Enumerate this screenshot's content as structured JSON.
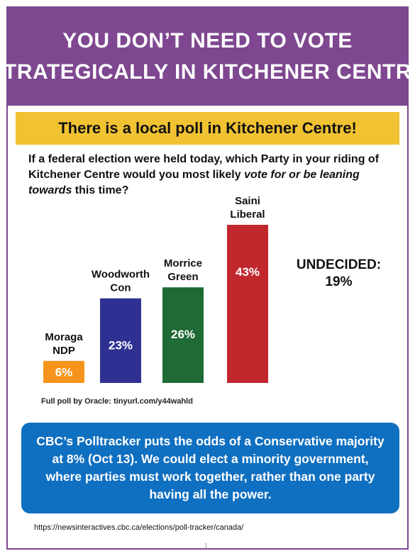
{
  "header": {
    "line1": "YOU DON’T NEED TO VOTE",
    "line2": "STRATEGICALLY IN KITCHENER CENTRE"
  },
  "subtitle": "There is a local poll in Kitchener Centre!",
  "question": {
    "part1": "If a federal election were held today, which Party in your riding of Kitchener Centre would you most likely ",
    "emphasis": "vote for or be leaning towards",
    "part2": " this time?"
  },
  "undecided": {
    "label": "UNDECIDED:",
    "value": "19%"
  },
  "source_note": "Full poll by Oracle: tinyurl.com/y44wahld",
  "callout": "CBC’s Polltracker puts the odds of a Conservative majority at 8% (Oct 13). We could elect a minority government, where parties must work together, rather than one party having all the power.",
  "url_note": "https://newsinteractives.cbc.ca/elections/poll-tracker/canada/",
  "page_number": "1",
  "colors": {
    "header": "#7e4790",
    "subtitle_bar": "#f1c232",
    "callout": "#0f6fc0"
  },
  "chart_data": {
    "type": "bar",
    "categories": [
      "Moraga NDP",
      "Woodworth Con",
      "Morrice Green",
      "Saini Liberal"
    ],
    "label_lines": [
      [
        "Moraga",
        "NDP"
      ],
      [
        "Woodworth",
        "Con"
      ],
      [
        "Morrice",
        "Green"
      ],
      [
        "Saini",
        "Liberal"
      ]
    ],
    "values": [
      6,
      23,
      26,
      43
    ],
    "value_labels": [
      "6%",
      "23%",
      "26%",
      "43%"
    ],
    "colors": [
      "#f7941d",
      "#2e3192",
      "#1e6b35",
      "#c1272d"
    ],
    "ylim": [
      0,
      43
    ],
    "grid": false,
    "legend": "none"
  }
}
